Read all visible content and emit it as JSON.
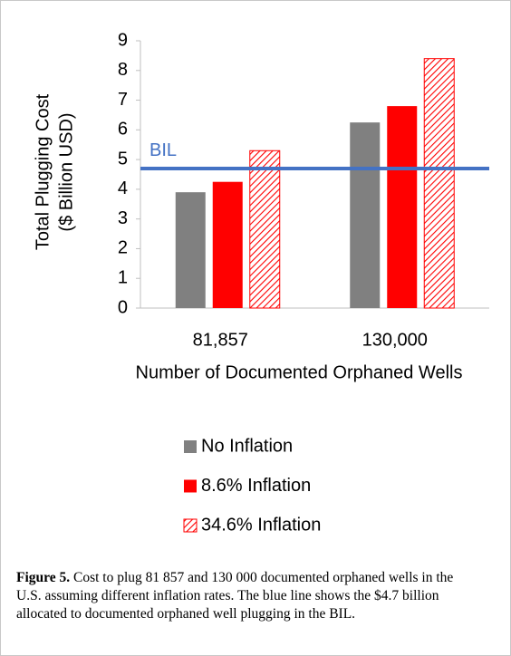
{
  "chart_data": {
    "type": "bar",
    "categories": [
      "81,857",
      "130,000"
    ],
    "series": [
      {
        "name": "No Inflation",
        "color": "#808080",
        "values": [
          3.9,
          6.25
        ]
      },
      {
        "name": "8.6% Inflation",
        "color": "#ff0000",
        "values": [
          4.25,
          6.8
        ]
      },
      {
        "name": "34.6% Inflation",
        "color": "#ff0000",
        "hatch": true,
        "values": [
          5.3,
          8.4
        ]
      }
    ],
    "reference_line": {
      "label": "BIL",
      "value": 4.7,
      "color": "#4472c4"
    },
    "ylabel": [
      "Total Plugging Cost",
      "($ Billion USD)"
    ],
    "xlabel": "Number of Documented Orphaned Wells",
    "ylim": [
      0,
      9
    ],
    "yticks": [
      0,
      1,
      2,
      3,
      4,
      5,
      6,
      7,
      8,
      9
    ],
    "legend": "bottom",
    "caption": {
      "label": "Figure 5.",
      "text": "Cost to plug 81 857 and 130 000 documented orphaned wells in the U.S. assuming different inflation rates. The blue line shows the $4.7 billion allocated to documented orphaned well plugging in the BIL."
    }
  }
}
